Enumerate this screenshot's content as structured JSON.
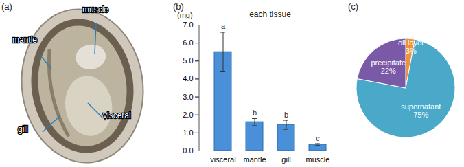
{
  "chart_data": [
    {
      "type": "image",
      "panel_label": "(a)",
      "annotations": [
        "mantle",
        "muscle",
        "gill",
        "visceral"
      ]
    },
    {
      "type": "bar",
      "panel_label": "(b)",
      "title": "each tissue",
      "ylabel": "(mg)",
      "categories": [
        "visceral",
        "mantle",
        "gill",
        "muscle"
      ],
      "values": [
        5.5,
        1.6,
        1.45,
        0.35
      ],
      "errors": [
        1.1,
        0.2,
        0.25,
        0.05
      ],
      "annotations": [
        "a",
        "b",
        "b",
        "c"
      ],
      "color": "#4a90d9",
      "ylim": [
        0,
        7
      ],
      "yticks": [
        0,
        1,
        2,
        3,
        4,
        5,
        6,
        7
      ],
      "grid": false
    },
    {
      "type": "pie",
      "panel_label": "(c)",
      "categories": [
        "oil layer",
        "supernatant",
        "precipitate"
      ],
      "values": [
        3,
        75,
        22
      ],
      "value_labels": [
        "3%",
        "75%",
        "22%"
      ],
      "colors": [
        "#f0923a",
        "#4aa9c8",
        "#7a5aa6"
      ],
      "data_labels": true
    }
  ]
}
